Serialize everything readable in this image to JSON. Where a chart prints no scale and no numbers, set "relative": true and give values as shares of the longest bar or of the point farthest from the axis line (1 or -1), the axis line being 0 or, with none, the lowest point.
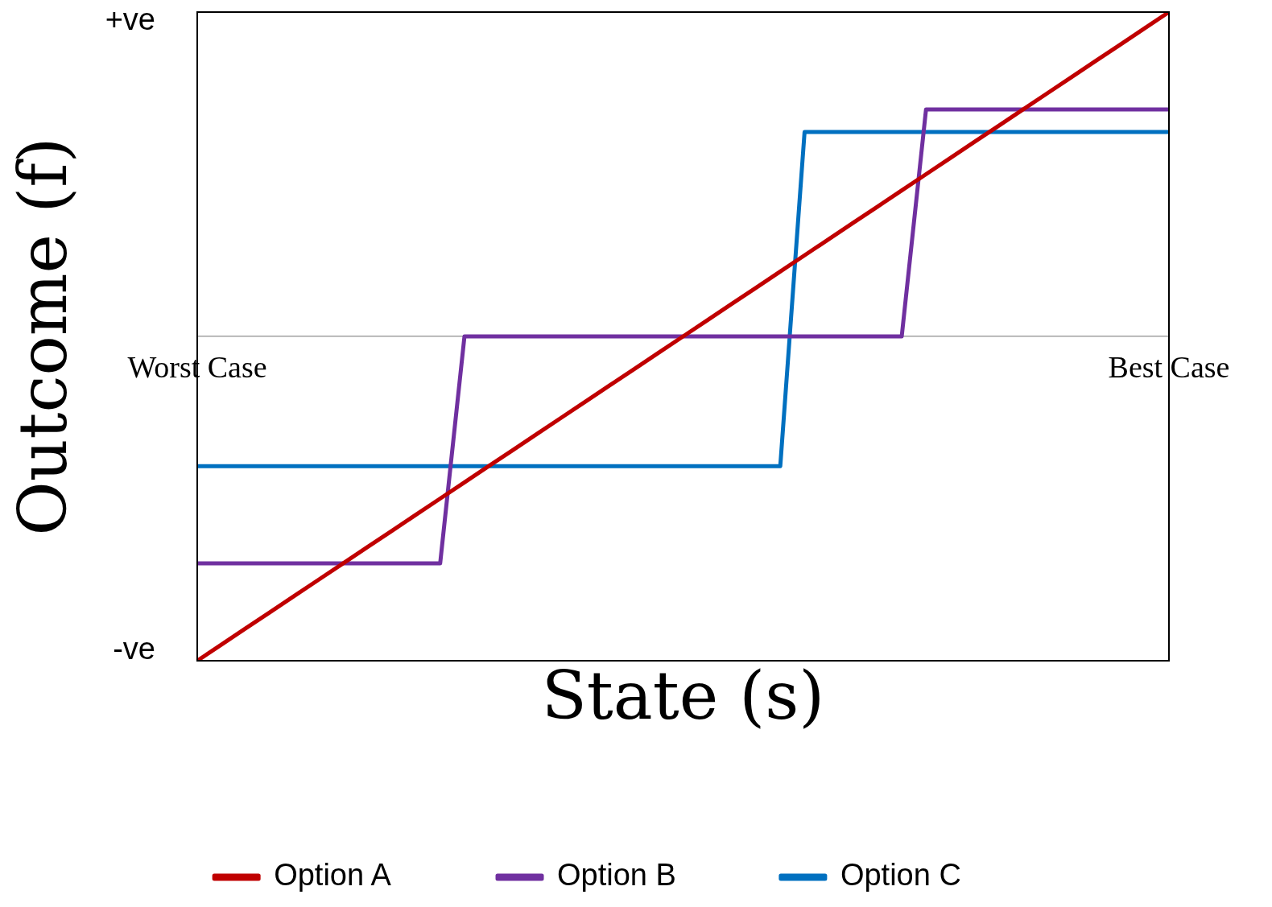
{
  "chart_data": {
    "type": "line",
    "relative": true,
    "xlabel": "State (s)",
    "ylabel": "Outcome (f)",
    "annotations": [
      "+ve",
      "-ve"
    ],
    "categories": [
      "Worst Case",
      null,
      null,
      null,
      null,
      null,
      null,
      null,
      null,
      null,
      null,
      null,
      null,
      null,
      null,
      null,
      null,
      null,
      null,
      null,
      null,
      null,
      null,
      null,
      null,
      null,
      null,
      null,
      null,
      null,
      null,
      null,
      null,
      null,
      null,
      null,
      null,
      null,
      null,
      null,
      "Best Case"
    ],
    "legend": "bottom",
    "marker": "none",
    "line_style": "solid",
    "series": [
      {
        "name": "Option A",
        "color": "#c00000",
        "values": [
          -1,
          -0.95,
          -0.9,
          -0.85,
          -0.8,
          -0.75,
          -0.7,
          -0.65,
          -0.6,
          -0.55,
          -0.5,
          -0.45,
          -0.4,
          -0.35,
          -0.3,
          -0.25,
          -0.2,
          -0.15,
          -0.1,
          -0.05,
          0,
          0.05,
          0.1,
          0.15,
          0.2,
          0.25,
          0.3,
          0.35,
          0.4,
          0.45,
          0.5,
          0.55,
          0.6,
          0.65,
          0.7,
          0.75,
          0.8,
          0.85,
          0.9,
          0.95,
          1
        ]
      },
      {
        "name": "Option B",
        "color": "#7030a0",
        "values": [
          -0.7,
          -0.7,
          -0.7,
          -0.7,
          -0.7,
          -0.7,
          -0.7,
          -0.7,
          -0.7,
          -0.7,
          -0.7,
          0,
          0,
          0,
          0,
          0,
          0,
          0,
          0,
          0,
          0,
          0,
          0,
          0,
          0,
          0,
          0,
          0,
          0,
          0,
          0.7,
          0.7,
          0.7,
          0.7,
          0.7,
          0.7,
          0.7,
          0.7,
          0.7,
          0.7,
          0.7
        ]
      },
      {
        "name": "Option C",
        "color": "#0070c0",
        "values": [
          -0.4,
          -0.4,
          -0.4,
          -0.4,
          -0.4,
          -0.4,
          -0.4,
          -0.4,
          -0.4,
          -0.4,
          -0.4,
          -0.4,
          -0.4,
          -0.4,
          -0.4,
          -0.4,
          -0.4,
          -0.4,
          -0.4,
          -0.4,
          -0.4,
          -0.4,
          -0.4,
          -0.4,
          -0.4,
          0.63,
          0.63,
          0.63,
          0.63,
          0.63,
          0.63,
          0.63,
          0.63,
          0.63,
          0.63,
          0.63,
          0.63,
          0.63,
          0.63,
          0.63,
          0.63
        ]
      }
    ]
  }
}
